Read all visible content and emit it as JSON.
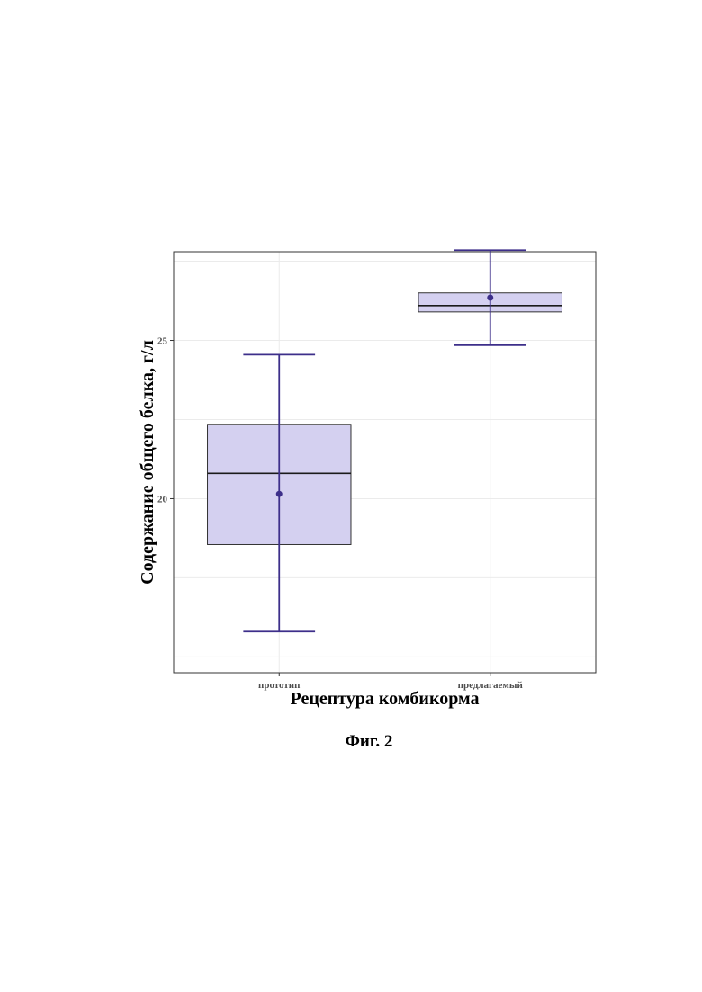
{
  "figure": {
    "caption": "Фиг. 2"
  },
  "colors": {
    "box_fill": "#d4d0f0",
    "whisker": "#3d2f8a",
    "median": "#1a1a1a",
    "mean_point": "#3d2f8a",
    "panel_border": "#333333",
    "grid": "#ebebeb"
  },
  "chart_data": {
    "type": "box",
    "title": "",
    "xlabel": "Рецептура комбикорма",
    "ylabel": "Содержание общего белка, г/л",
    "categories": [
      "прототип",
      "предлагаемый"
    ],
    "ylim": [
      14.5,
      27.8
    ],
    "yticks": [
      20,
      25
    ],
    "grid": true,
    "series": [
      {
        "category": "прототип",
        "whisker_low": 15.8,
        "q1": 18.55,
        "median": 20.8,
        "q3": 22.35,
        "whisker_high": 24.55,
        "mean": 20.15
      },
      {
        "category": "предлагаемый",
        "whisker_low": 24.85,
        "q1": 25.9,
        "median": 26.1,
        "q3": 26.5,
        "whisker_high": 27.85,
        "mean": 26.35
      }
    ]
  }
}
